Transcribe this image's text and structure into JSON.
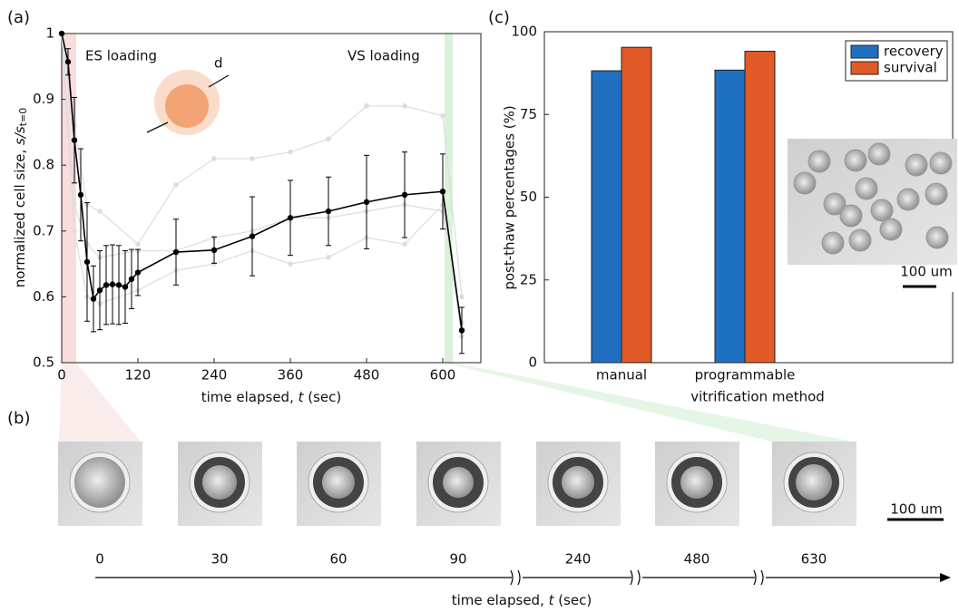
{
  "chart_data": [
    {
      "type": "line",
      "panel": "(a)",
      "xlabel": {
        "text": "time elapsed, ",
        "var": "t",
        "unit": " (sec)"
      },
      "ylabel": {
        "text": "normalized cell size, ",
        "var": "s/s",
        "sub": "t=0"
      },
      "annotations": [
        "ES loading",
        "VS loading",
        "d"
      ],
      "xlim": [
        0,
        660
      ],
      "ylim": [
        0.5,
        1
      ],
      "xticks": [
        0,
        120,
        240,
        360,
        480,
        600
      ],
      "yticks": [
        0.5,
        0.6,
        0.7,
        0.8,
        0.9,
        1
      ],
      "series": [
        {
          "color": "#dddddd",
          "x": [
            0,
            20,
            40,
            60,
            120,
            180,
            240,
            300,
            360,
            420,
            480,
            540,
            600,
            630
          ],
          "values": [
            1,
            0.86,
            0.74,
            0.73,
            0.68,
            0.77,
            0.81,
            0.81,
            0.82,
            0.84,
            0.89,
            0.89,
            0.875,
            0.6
          ]
        },
        {
          "color": "#dddddd",
          "x": [
            0,
            20,
            40,
            60,
            120,
            180,
            240,
            300,
            360,
            420,
            480,
            540,
            600,
            630
          ],
          "values": [
            1,
            0.74,
            0.68,
            0.66,
            0.67,
            0.67,
            0.69,
            0.7,
            0.72,
            0.72,
            0.73,
            0.74,
            0.73,
            0.56
          ]
        },
        {
          "color": "#dddddd",
          "x": [
            0,
            20,
            40,
            60,
            120,
            180,
            240,
            300,
            360,
            420,
            480,
            540,
            600,
            630
          ],
          "values": [
            1,
            0.7,
            0.6,
            0.59,
            0.61,
            0.64,
            0.65,
            0.67,
            0.65,
            0.66,
            0.69,
            0.68,
            0.74,
            0.54
          ]
        },
        {
          "color": "#000000",
          "x": [
            0,
            10,
            20,
            30,
            40,
            50,
            60,
            70,
            80,
            90,
            100,
            110,
            120,
            180,
            240,
            300,
            360,
            420,
            480,
            540,
            600,
            630
          ],
          "values": [
            1,
            0.957,
            0.838,
            0.755,
            0.653,
            0.597,
            0.61,
            0.618,
            0.619,
            0.618,
            0.615,
            0.627,
            0.637,
            0.668,
            0.671,
            0.692,
            0.72,
            0.73,
            0.744,
            0.755,
            0.76,
            0.549
          ],
          "errors": [
            0,
            0.02,
            0.065,
            0.07,
            0.09,
            0.05,
            0.06,
            0.06,
            0.06,
            0.06,
            0.055,
            0.045,
            0.035,
            0.05,
            0.02,
            0.06,
            0.057,
            0.052,
            0.071,
            0.065,
            0.057,
            0.035
          ]
        }
      ]
    },
    {
      "type": "bar",
      "panel": "(c)",
      "xlabel": "vitrification method",
      "ylabel": "post-thaw percentages (%)",
      "categories": [
        "manual",
        "programmable"
      ],
      "ylim": [
        0,
        100
      ],
      "yticks": [
        0,
        25,
        50,
        75,
        100
      ],
      "legend": "top-right",
      "series": [
        {
          "name": "recovery",
          "color": "#1f70c1",
          "values": [
            88.2,
            88.4
          ]
        },
        {
          "name": "survival",
          "color": "#e15a27",
          "values": [
            95.3,
            94.1
          ]
        }
      ],
      "inset_scale": "100 um"
    }
  ],
  "panel_b": {
    "panel": "(b)",
    "labels": [
      "0",
      "30",
      "60",
      "90",
      "240",
      "480",
      "630"
    ],
    "scale": "100 um",
    "xlabel": {
      "text": "time elapsed, ",
      "var": "t",
      "unit": " (sec)"
    }
  }
}
